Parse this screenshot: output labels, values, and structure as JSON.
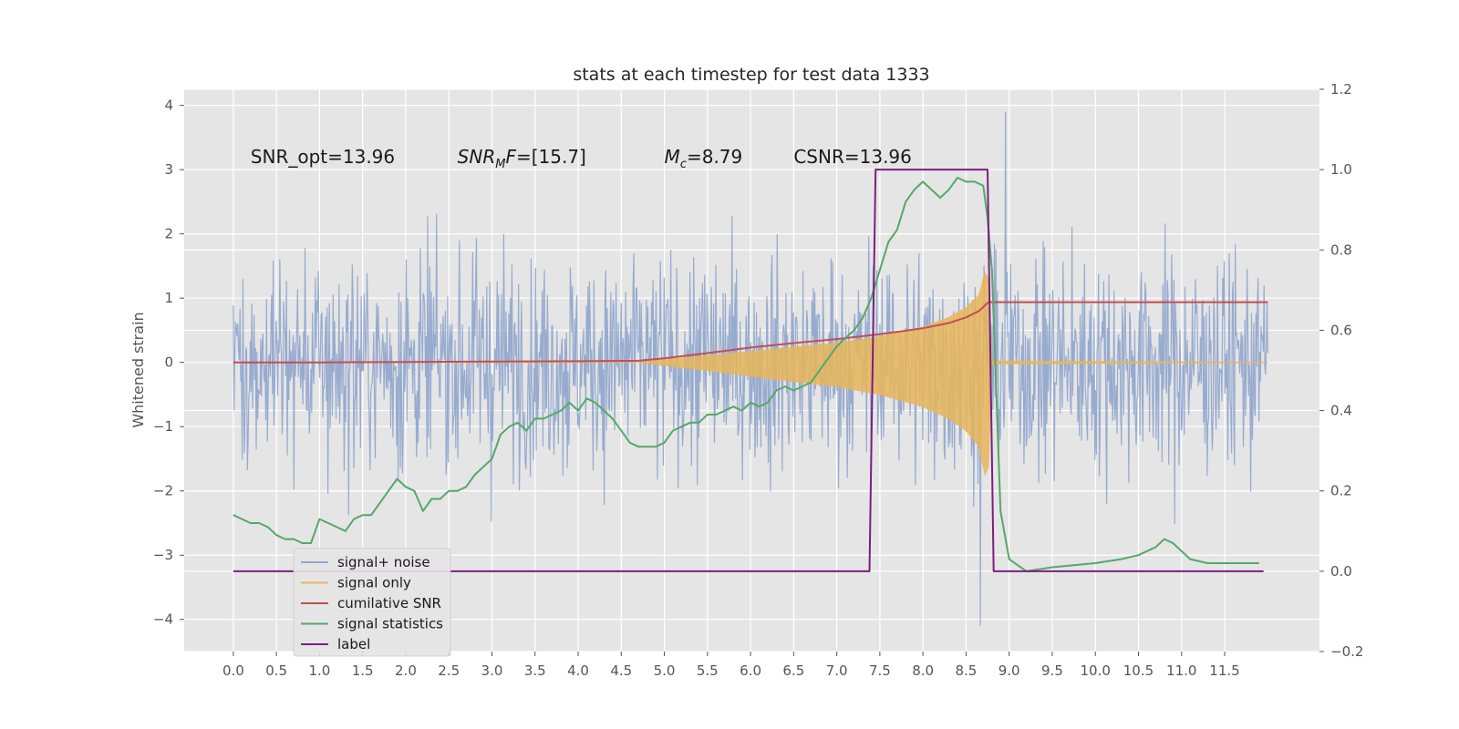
{
  "chart_data": {
    "type": "line",
    "title": "stats at each timestep for test data 1333",
    "ylabel": "Whitened strain",
    "xlim": [
      -0.57,
      12.6
    ],
    "ylim": [
      -4.5,
      4.25
    ],
    "y2lim": [
      -0.2,
      1.2
    ],
    "grid": true,
    "background": "#e5e5e5",
    "xticks": [
      0.0,
      0.5,
      1.0,
      1.5,
      2.0,
      2.5,
      3.0,
      3.5,
      4.0,
      4.5,
      5.0,
      5.5,
      6.0,
      6.5,
      7.0,
      7.5,
      8.0,
      8.5,
      9.0,
      9.5,
      10.0,
      10.5,
      11.0,
      11.5
    ],
    "xtick_labels": [
      "0.0",
      "0.5",
      "1.0",
      "1.5",
      "2.0",
      "2.5",
      "3.0",
      "3.5",
      "4.0",
      "4.5",
      "5.0",
      "5.5",
      "6.0",
      "6.5",
      "7.0",
      "7.5",
      "8.0",
      "8.5",
      "9.0",
      "9.5",
      "10.0",
      "10.5",
      "11.0",
      "11.5"
    ],
    "yticks": [
      -4,
      -3,
      -2,
      -1,
      0,
      1,
      2,
      3,
      4
    ],
    "ytick_labels": [
      "−4",
      "−3",
      "−2",
      "−1",
      "0",
      "1",
      "2",
      "3",
      "4"
    ],
    "y2ticks": [
      -0.2,
      0.0,
      0.2,
      0.4,
      0.6,
      0.8,
      1.0,
      1.2
    ],
    "y2tick_labels": [
      "−0.2",
      "0.0",
      "0.2",
      "0.4",
      "0.6",
      "0.8",
      "1.0",
      "1.2"
    ],
    "annotations": [
      {
        "text": "SNR_opt=13.96",
        "x": 0.2,
        "y": 3.1
      },
      {
        "text": "SNR_MF=[15.7]",
        "x": 2.6,
        "y": 3.1
      },
      {
        "text": "M_c=8.79",
        "x": 5.0,
        "y": 3.1
      },
      {
        "text": "CSNR=13.96",
        "x": 6.5,
        "y": 3.1
      }
    ],
    "noise": {
      "name": "signal+ noise",
      "color": "#92a8cd",
      "x_range": [
        0.0,
        12.0
      ],
      "band": [
        -2.0,
        1.8
      ],
      "typical_peak": 3.0,
      "max": 3.9,
      "min": -4.1
    },
    "signal": {
      "name": "signal only",
      "color": "#e8b65a",
      "envelope": {
        "x": [
          0.0,
          4.7,
          5.5,
          6.0,
          6.5,
          7.0,
          7.5,
          8.0,
          8.3,
          8.5,
          8.65,
          8.72,
          8.76,
          8.8,
          12.0
        ],
        "y": [
          0.0,
          0.0,
          0.1,
          0.17,
          0.24,
          0.3,
          0.4,
          0.55,
          0.7,
          0.85,
          1.05,
          1.4,
          1.3,
          0.02,
          0.0
        ]
      }
    },
    "series": [
      {
        "name": "cumilative SNR",
        "color": "#c44e52",
        "axis": "right",
        "x": [
          0.0,
          1.0,
          2.0,
          3.0,
          4.0,
          4.7,
          5.0,
          5.5,
          6.0,
          6.5,
          7.0,
          7.5,
          8.0,
          8.3,
          8.5,
          8.65,
          8.75,
          8.76,
          9.0,
          12.0
        ],
        "y": [
          0.52,
          0.52,
          0.521,
          0.522,
          0.523,
          0.524,
          0.53,
          0.543,
          0.557,
          0.568,
          0.578,
          0.59,
          0.605,
          0.618,
          0.632,
          0.648,
          0.668,
          0.67,
          0.67,
          0.67
        ]
      },
      {
        "name": "signal statistics",
        "color": "#55a868",
        "axis": "right",
        "x": [
          0.0,
          0.1,
          0.2,
          0.3,
          0.4,
          0.5,
          0.6,
          0.7,
          0.8,
          0.9,
          1.0,
          1.1,
          1.2,
          1.3,
          1.4,
          1.5,
          1.6,
          1.7,
          1.8,
          1.9,
          2.0,
          2.1,
          2.2,
          2.3,
          2.4,
          2.5,
          2.6,
          2.7,
          2.8,
          2.9,
          3.0,
          3.1,
          3.2,
          3.3,
          3.4,
          3.5,
          3.6,
          3.7,
          3.8,
          3.9,
          4.0,
          4.1,
          4.2,
          4.3,
          4.4,
          4.5,
          4.6,
          4.7,
          4.8,
          4.9,
          5.0,
          5.1,
          5.2,
          5.3,
          5.4,
          5.5,
          5.6,
          5.7,
          5.8,
          5.9,
          6.0,
          6.1,
          6.2,
          6.3,
          6.4,
          6.5,
          6.6,
          6.7,
          6.8,
          6.9,
          7.0,
          7.1,
          7.2,
          7.3,
          7.4,
          7.5,
          7.6,
          7.7,
          7.8,
          7.9,
          8.0,
          8.1,
          8.2,
          8.3,
          8.4,
          8.5,
          8.6,
          8.7,
          8.75,
          8.8,
          8.85,
          8.9,
          9.0,
          9.2,
          9.5,
          10.0,
          10.3,
          10.5,
          10.7,
          10.8,
          10.9,
          11.0,
          11.1,
          11.3,
          11.5,
          11.7,
          11.9
        ],
        "y": [
          0.14,
          0.13,
          0.12,
          0.12,
          0.11,
          0.09,
          0.08,
          0.08,
          0.07,
          0.07,
          0.13,
          0.12,
          0.11,
          0.1,
          0.13,
          0.14,
          0.14,
          0.17,
          0.2,
          0.23,
          0.21,
          0.2,
          0.15,
          0.18,
          0.18,
          0.2,
          0.2,
          0.21,
          0.24,
          0.26,
          0.28,
          0.34,
          0.36,
          0.37,
          0.35,
          0.38,
          0.38,
          0.39,
          0.4,
          0.42,
          0.4,
          0.43,
          0.42,
          0.4,
          0.38,
          0.35,
          0.32,
          0.31,
          0.31,
          0.31,
          0.32,
          0.35,
          0.36,
          0.37,
          0.37,
          0.39,
          0.39,
          0.4,
          0.41,
          0.4,
          0.42,
          0.41,
          0.42,
          0.45,
          0.46,
          0.45,
          0.46,
          0.47,
          0.5,
          0.53,
          0.56,
          0.58,
          0.6,
          0.63,
          0.68,
          0.75,
          0.82,
          0.85,
          0.92,
          0.95,
          0.97,
          0.95,
          0.93,
          0.95,
          0.98,
          0.97,
          0.97,
          0.96,
          0.88,
          0.75,
          0.45,
          0.15,
          0.03,
          0.0,
          0.01,
          0.02,
          0.03,
          0.04,
          0.06,
          0.08,
          0.07,
          0.05,
          0.03,
          0.02,
          0.02,
          0.02,
          0.02
        ]
      },
      {
        "name": "label",
        "color": "#7a1f80",
        "axis": "right",
        "x": [
          0.0,
          7.38,
          7.45,
          8.75,
          8.82,
          11.95
        ],
        "y": [
          0.0,
          0.0,
          1.0,
          1.0,
          0.0,
          0.0
        ]
      }
    ],
    "legend": {
      "position": "lower-left",
      "entries": [
        {
          "label": "signal+ noise",
          "color": "#92a8cd"
        },
        {
          "label": "signal only",
          "color": "#e8b65a"
        },
        {
          "label": "cumilative SNR",
          "color": "#c44e52"
        },
        {
          "label": "signal statistics",
          "color": "#55a868"
        },
        {
          "label": "label",
          "color": "#7a1f80"
        }
      ]
    }
  }
}
